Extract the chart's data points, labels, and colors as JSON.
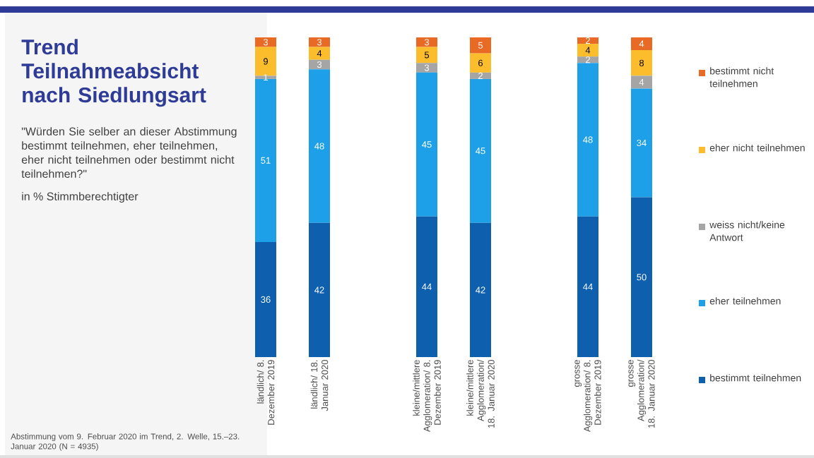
{
  "chart_data": {
    "type": "bar",
    "stacked": true,
    "data_labels": true,
    "legend": "right",
    "title": "Trend Teilnahmeabsicht nach Siedlungsart",
    "subtitle": "\"Würden Sie selber an dieser Abstimmung bestimmt teilnehmen, eher teilnehmen, eher nicht teilnehmen oder bestimmt nicht teilnehmen?\"",
    "annotations": [
      "in % Stimmberechtigter",
      "Abstimmung vom 9. Februar 2020 im Trend, 2. Welle, 15.–23. Januar 2020 (N = 4935)"
    ],
    "categories": [
      "ländlich/ 8. Dezember 2019",
      "ländlich/ 18. Januar 2020",
      "kleine/mittlere Agglomeration/ 8. Dezember 2019",
      "kleine/mittlere Agglomeration/ 18. Januar 2020",
      "grosse Agglomeration/ 8. Dezember 2019",
      "grosse Agglomeration/ 18. Januar 2020"
    ],
    "series": [
      {
        "name": "bestimmt teilnehmen",
        "color": "#0e5fad",
        "values": [
          36,
          42,
          44,
          42,
          44,
          50
        ]
      },
      {
        "name": "eher teilnehmen",
        "color": "#1ea0e8",
        "values": [
          51,
          48,
          45,
          45,
          48,
          34
        ]
      },
      {
        "name": "weiss nicht/keine Antwort",
        "color": "#a5a5a5",
        "values": [
          1,
          3,
          3,
          2,
          2,
          4
        ]
      },
      {
        "name": "eher nicht teilnehmen",
        "color": "#fbbd2b",
        "values": [
          9,
          4,
          5,
          6,
          4,
          8
        ]
      },
      {
        "name": "bestimmt nicht teilnehmen",
        "color": "#e86a24",
        "values": [
          3,
          3,
          3,
          5,
          2,
          4
        ]
      }
    ]
  }
}
